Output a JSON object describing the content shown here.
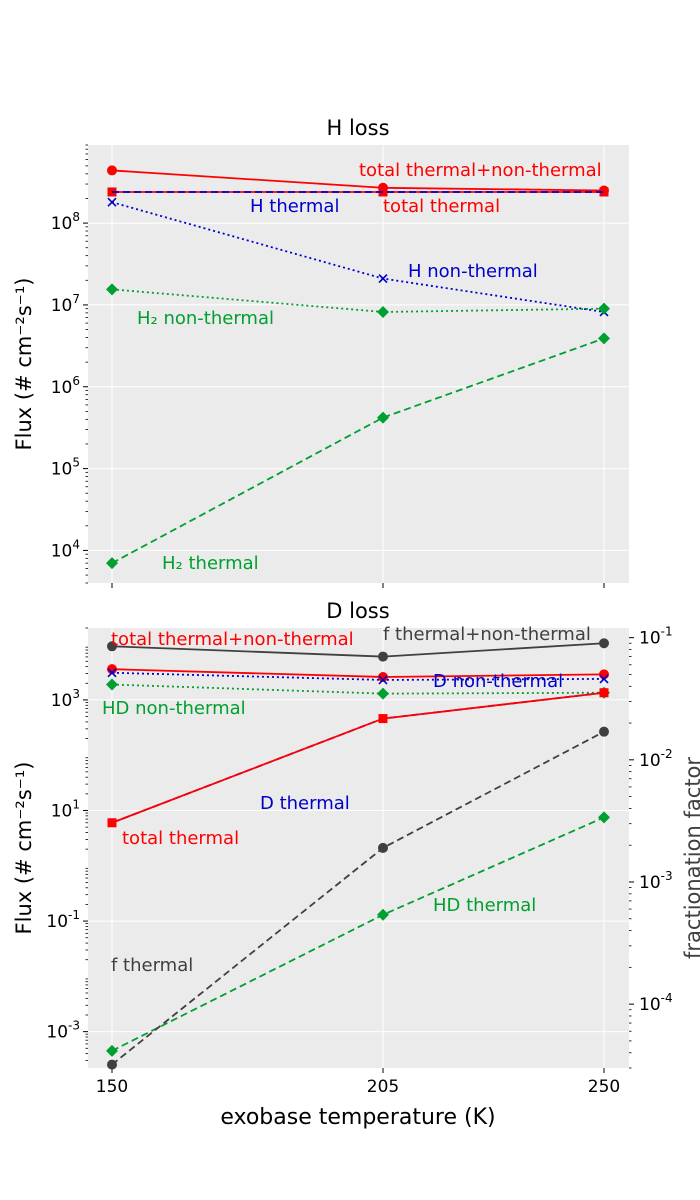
{
  "chart_data": [
    {
      "type": "line",
      "title": "H loss",
      "xlabel": "",
      "ylabel": "Flux (# cm⁻²s⁻¹)",
      "yscale": "log",
      "ylim": [
        4000,
        900000000
      ],
      "x": [
        150,
        205,
        250
      ],
      "x_ticks": [
        150,
        205,
        250
      ],
      "y_ticks": [
        {
          "value": 10000,
          "base": "10",
          "exp": "4"
        },
        {
          "value": 100000,
          "base": "10",
          "exp": "5"
        },
        {
          "value": 1000000,
          "base": "10",
          "exp": "6"
        },
        {
          "value": 10000000,
          "base": "10",
          "exp": "7"
        },
        {
          "value": 100000000,
          "base": "10",
          "exp": "8"
        }
      ],
      "grid": true,
      "series": [
        {
          "name": "total thermal+non-thermal",
          "color": "#ff0000",
          "style": "solid",
          "marker": "circle",
          "values": [
            440000000,
            270000000,
            250000000
          ]
        },
        {
          "name": "total thermal",
          "color": "#ff0000",
          "style": "solid",
          "marker": "square",
          "values": [
            240000000,
            240000000,
            240000000
          ]
        },
        {
          "name": "H thermal",
          "color": "#0000cc",
          "style": "dashed",
          "marker": "none",
          "values": [
            240000000,
            240000000,
            240000000
          ]
        },
        {
          "name": "H non-thermal",
          "color": "#0000cc",
          "style": "dotted",
          "marker": "x",
          "values": [
            180000000,
            21000000,
            8200000
          ]
        },
        {
          "name": "H₂ non-thermal",
          "color": "#00a030",
          "style": "dotted",
          "marker": "diamond",
          "values": [
            15500000,
            8200000,
            9000000
          ]
        },
        {
          "name": "H₂ thermal",
          "color": "#00a030",
          "style": "dashed",
          "marker": "diamond",
          "values": [
            7000,
            420000,
            3900000
          ]
        }
      ],
      "annotations": [
        {
          "text": "total thermal+non-thermal",
          "color": "#ff0000"
        },
        {
          "text": "H thermal",
          "color": "#0000cc"
        },
        {
          "text": "total thermal",
          "color": "#ff0000"
        },
        {
          "text": "H non-thermal",
          "color": "#0000cc"
        },
        {
          "text": "H₂ non-thermal",
          "color": "#00a030"
        },
        {
          "text": "H₂ thermal",
          "color": "#00a030"
        }
      ]
    },
    {
      "type": "line",
      "title": "D loss",
      "xlabel": "exobase temperature (K)",
      "ylabel": "Flux (# cm⁻²s⁻¹)",
      "y2label": "fractionation factor",
      "yscale": "log",
      "ylim": [
        0.00022,
        20000
      ],
      "y2lim": [
        3e-05,
        0.12
      ],
      "x": [
        150,
        205,
        250
      ],
      "x_ticks": [
        150,
        205,
        250
      ],
      "y_ticks": [
        {
          "value": 0.001,
          "base": "10",
          "exp": "-3"
        },
        {
          "value": 0.1,
          "base": "10",
          "exp": "-1"
        },
        {
          "value": 10,
          "base": "10",
          "exp": "1"
        },
        {
          "value": 1000,
          "base": "10",
          "exp": "3"
        }
      ],
      "y2_ticks": [
        {
          "value": 0.0001,
          "base": "10",
          "exp": "-4"
        },
        {
          "value": 0.001,
          "base": "10",
          "exp": "-3"
        },
        {
          "value": 0.01,
          "base": "10",
          "exp": "-2"
        },
        {
          "value": 0.1,
          "base": "10",
          "exp": "-1"
        }
      ],
      "grid": true,
      "series": [
        {
          "name": "total thermal+non-thermal",
          "color": "#ff0000",
          "style": "solid",
          "marker": "circle",
          "axis": "left",
          "values": [
            3600,
            2600,
            2900
          ]
        },
        {
          "name": "D non-thermal",
          "color": "#0000cc",
          "style": "dotted",
          "marker": "x",
          "axis": "left",
          "values": [
            3100,
            2300,
            2400
          ]
        },
        {
          "name": "HD non-thermal",
          "color": "#00a030",
          "style": "dotted",
          "marker": "diamond",
          "axis": "left",
          "values": [
            1900,
            1300,
            1350
          ]
        },
        {
          "name": "D thermal",
          "color": "#0000cc",
          "style": "dashed",
          "marker": "none",
          "axis": "left",
          "values": [
            6,
            460,
            1350
          ]
        },
        {
          "name": "total thermal",
          "color": "#ff0000",
          "style": "solid",
          "marker": "square",
          "axis": "left",
          "values": [
            6,
            460,
            1350
          ]
        },
        {
          "name": "HD thermal",
          "color": "#00a030",
          "style": "dashed",
          "marker": "diamond",
          "axis": "left",
          "values": [
            0.00045,
            0.13,
            7.5
          ]
        },
        {
          "name": "f thermal+non-thermal",
          "color": "#404040",
          "style": "solid",
          "marker": "circle",
          "axis": "right",
          "values": [
            0.085,
            0.07,
            0.09
          ]
        },
        {
          "name": "f thermal",
          "color": "#404040",
          "style": "dashed",
          "marker": "circle",
          "axis": "right",
          "values": [
            3.2e-05,
            0.0019,
            0.017
          ]
        }
      ],
      "annotations": [
        {
          "text": "total thermal+non-thermal",
          "color": "#ff0000"
        },
        {
          "text": "f thermal+non-thermal",
          "color": "#404040"
        },
        {
          "text": "D non-thermal",
          "color": "#0000cc"
        },
        {
          "text": "HD non-thermal",
          "color": "#00a030"
        },
        {
          "text": "D thermal",
          "color": "#0000cc"
        },
        {
          "text": "total thermal",
          "color": "#ff0000"
        },
        {
          "text": "HD thermal",
          "color": "#00a030"
        },
        {
          "text": "f thermal",
          "color": "#404040"
        }
      ]
    }
  ]
}
